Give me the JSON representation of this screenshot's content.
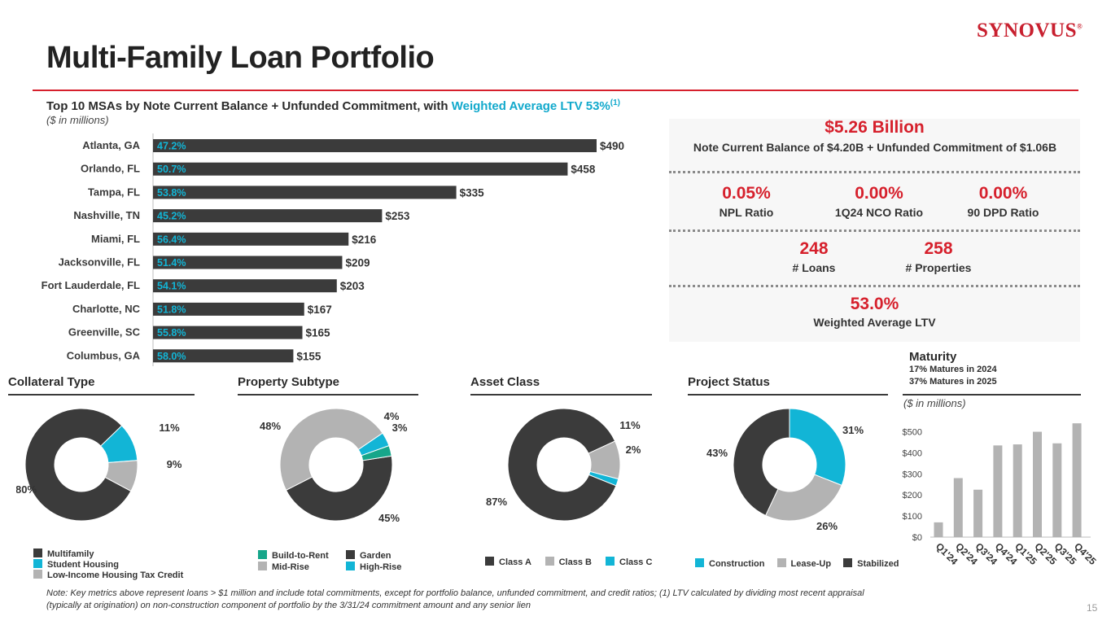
{
  "header": {
    "title": "Multi-Family Loan Portfolio",
    "logo_text": "SYNOVUS",
    "logo_mark": "®"
  },
  "msa_section": {
    "heading_main": "Top 10 MSAs by Note Current Balance + Unfunded Commitment,",
    "heading_with": "with",
    "heading_highlight": "Weighted Average LTV 53%",
    "heading_note": "(1)",
    "units": "($ in millions)"
  },
  "stats": {
    "total_value": "$5.26 Billion",
    "total_label": "Note Current Balance of $4.20B + Unfunded Commitment of $1.06B",
    "npl_value": "0.05%",
    "npl_label": "NPL Ratio",
    "nco_value": "0.00%",
    "nco_label": "1Q24 NCO Ratio",
    "dpd_value": "0.00%",
    "dpd_label": "90 DPD Ratio",
    "loans_value": "248",
    "loans_label": "# Loans",
    "props_value": "258",
    "props_label": "# Properties",
    "ltv_value": "53.0%",
    "ltv_label": "Weighted Average LTV"
  },
  "sections": {
    "collateral": "Collateral Type",
    "subtype": "Property Subtype",
    "asset": "Asset Class",
    "project": "Project Status"
  },
  "maturity": {
    "title": "Maturity",
    "line1": "17% Matures in 2024",
    "line2": "37% Matures in 2025",
    "units": "($ in millions)"
  },
  "colors": {
    "dark": "#3b3b3b",
    "gray": "#b3b3b3",
    "cyan": "#12b5d6",
    "teal": "#16a68a",
    "red": "#d6202c"
  },
  "chart_data": [
    {
      "type": "bar",
      "orientation": "horizontal",
      "title": "Top 10 MSAs by Note Current Balance + Unfunded Commitment",
      "categories": [
        "Atlanta, GA",
        "Orlando, FL",
        "Tampa, FL",
        "Nashville, TN",
        "Miami, FL",
        "Jacksonville, FL",
        "Fort Lauderdale, FL",
        "Charlotte, NC",
        "Greenville, SC",
        "Columbus, GA"
      ],
      "values": [
        490,
        458,
        335,
        253,
        216,
        209,
        203,
        167,
        165,
        155
      ],
      "value_labels": [
        "$490",
        "$458",
        "$335",
        "$253",
        "$216",
        "$209",
        "$203",
        "$167",
        "$165",
        "$155"
      ],
      "ltv_labels": [
        "47.2%",
        "50.7%",
        "53.8%",
        "45.2%",
        "56.4%",
        "51.4%",
        "54.1%",
        "51.8%",
        "55.8%",
        "58.0%"
      ],
      "xlim": [
        0,
        530
      ]
    },
    {
      "type": "pie",
      "title": "Collateral Type",
      "labels": [
        "Multifamily",
        "Student Housing",
        "Low-Income Housing Tax Credit"
      ],
      "values": [
        80,
        11,
        9
      ],
      "value_labels": [
        "80%",
        "11%",
        "9%"
      ],
      "colors": [
        "#3b3b3b",
        "#12b5d6",
        "#b3b3b3"
      ],
      "start_deg": 118
    },
    {
      "type": "pie",
      "title": "Property Subtype",
      "labels": [
        "Garden",
        "Mid-Rise",
        "High-Rise",
        "Build-to-Rent"
      ],
      "values": [
        45,
        48,
        4,
        3
      ],
      "value_labels": [
        "45%",
        "48%",
        "4%",
        "3%"
      ],
      "colors": [
        "#3b3b3b",
        "#b3b3b3",
        "#12b5d6",
        "#16a68a"
      ],
      "legend_order": [
        "Build-to-Rent",
        "Garden",
        "Mid-Rise",
        "High-Rise"
      ],
      "start_deg": 81
    },
    {
      "type": "pie",
      "title": "Asset Class",
      "labels": [
        "Class A",
        "Class B",
        "Class C"
      ],
      "values": [
        87,
        11,
        2
      ],
      "value_labels": [
        "87%",
        "11%",
        "2%"
      ],
      "colors": [
        "#3b3b3b",
        "#b3b3b3",
        "#12b5d6"
      ],
      "start_deg": 112
    },
    {
      "type": "pie",
      "title": "Project Status",
      "labels": [
        "Construction",
        "Lease-Up",
        "Stabilized"
      ],
      "values": [
        31,
        26,
        43
      ],
      "value_labels": [
        "31%",
        "26%",
        "43%"
      ],
      "colors": [
        "#12b5d6",
        "#b3b3b3",
        "#3b3b3b"
      ],
      "start_deg": 0
    },
    {
      "type": "bar",
      "title": "Maturity",
      "categories": [
        "Q1'24",
        "Q2'24",
        "Q3'24",
        "Q4'24",
        "Q1'25",
        "Q2'25",
        "Q3'25",
        "Q4'25"
      ],
      "values": [
        70,
        280,
        225,
        435,
        440,
        500,
        445,
        540
      ],
      "y_ticks": [
        "$0",
        "$100",
        "$200",
        "$300",
        "$400",
        "$500"
      ],
      "ylim": [
        0,
        560
      ]
    }
  ],
  "footer": {
    "note_line1": "Note: Key metrics above represent loans > $1 million and include total commitments, except for portfolio balance, unfunded commitment, and credit ratios;  (1) LTV calculated by dividing most recent appraisal",
    "note_line2": "(typically at origination) on non-construction component of portfolio by the 3/31/24 commitment amount and any senior lien",
    "page_number": "15"
  }
}
